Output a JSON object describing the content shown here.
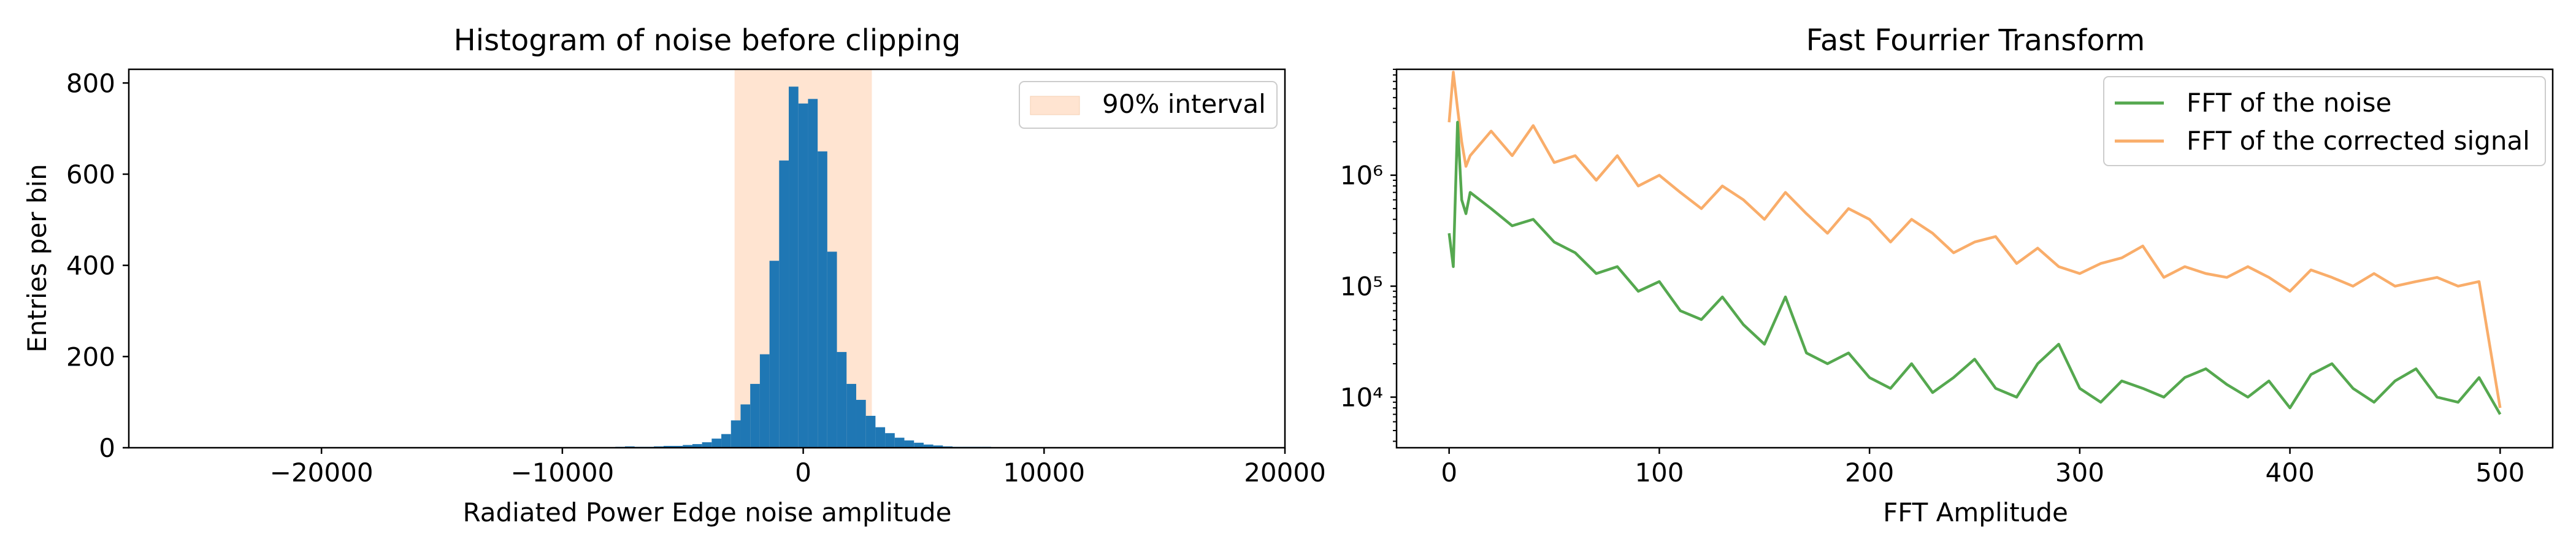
{
  "chart_data": [
    {
      "type": "bar",
      "title": "Histogram of noise before clipping",
      "xlabel": "Radiated Power Edge noise amplitude",
      "ylabel": "Entries per bin",
      "xlim": [
        -28000,
        20000
      ],
      "ylim": [
        0,
        830
      ],
      "xticks": [
        -20000,
        -10000,
        0,
        10000,
        20000
      ],
      "xtick_labels": [
        "−20000",
        "−10000",
        "0",
        "10000",
        "20000"
      ],
      "yticks": [
        0,
        200,
        400,
        600,
        800
      ],
      "ytick_labels": [
        "0",
        "200",
        "400",
        "600",
        "800"
      ],
      "bar_color": "#1f77b4",
      "bin_width": 400,
      "bins": [
        {
          "x": -27000,
          "y": 1
        },
        {
          "x": -25000,
          "y": 1
        },
        {
          "x": -24200,
          "y": 1
        },
        {
          "x": -18500,
          "y": 1
        },
        {
          "x": -14000,
          "y": 1
        },
        {
          "x": -12500,
          "y": 1
        },
        {
          "x": -11000,
          "y": 1
        },
        {
          "x": -10000,
          "y": 1
        },
        {
          "x": -7600,
          "y": 2
        },
        {
          "x": -7200,
          "y": 3
        },
        {
          "x": -6800,
          "y": 2
        },
        {
          "x": -6400,
          "y": 2
        },
        {
          "x": -6000,
          "y": 3
        },
        {
          "x": -5600,
          "y": 4
        },
        {
          "x": -5200,
          "y": 4
        },
        {
          "x": -4800,
          "y": 6
        },
        {
          "x": -4400,
          "y": 8
        },
        {
          "x": -4000,
          "y": 12
        },
        {
          "x": -3600,
          "y": 20
        },
        {
          "x": -3200,
          "y": 30
        },
        {
          "x": -2800,
          "y": 60
        },
        {
          "x": -2400,
          "y": 95
        },
        {
          "x": -2000,
          "y": 140
        },
        {
          "x": -1600,
          "y": 205
        },
        {
          "x": -1200,
          "y": 410
        },
        {
          "x": -800,
          "y": 630
        },
        {
          "x": -400,
          "y": 792
        },
        {
          "x": 0,
          "y": 755
        },
        {
          "x": 400,
          "y": 765
        },
        {
          "x": 800,
          "y": 650
        },
        {
          "x": 1200,
          "y": 430
        },
        {
          "x": 1600,
          "y": 210
        },
        {
          "x": 2000,
          "y": 140
        },
        {
          "x": 2400,
          "y": 105
        },
        {
          "x": 2800,
          "y": 70
        },
        {
          "x": 3200,
          "y": 45
        },
        {
          "x": 3600,
          "y": 32
        },
        {
          "x": 4000,
          "y": 22
        },
        {
          "x": 4400,
          "y": 16
        },
        {
          "x": 4800,
          "y": 11
        },
        {
          "x": 5200,
          "y": 7
        },
        {
          "x": 5600,
          "y": 5
        },
        {
          "x": 6000,
          "y": 3
        },
        {
          "x": 6400,
          "y": 2
        },
        {
          "x": 6800,
          "y": 2
        },
        {
          "x": 7200,
          "y": 2
        },
        {
          "x": 7600,
          "y": 2
        },
        {
          "x": 8000,
          "y": 1
        },
        {
          "x": 9000,
          "y": 1
        },
        {
          "x": 10000,
          "y": 1
        },
        {
          "x": 12500,
          "y": 1
        },
        {
          "x": 16500,
          "y": 1
        }
      ],
      "interval": {
        "label": "90% interval",
        "lo": -2850,
        "hi": 2850,
        "color": "#ffe4d1"
      },
      "legend_position": "top-right",
      "grid": false
    },
    {
      "type": "line",
      "title": "Fast Fourrier Transform",
      "xlabel": "FFT Amplitude",
      "ylabel": "",
      "xlim": [
        -25,
        525
      ],
      "ylim": [
        3500,
        9000000
      ],
      "yscale": "log",
      "xticks": [
        0,
        100,
        200,
        300,
        400,
        500
      ],
      "xtick_labels": [
        "0",
        "100",
        "200",
        "300",
        "400",
        "500"
      ],
      "ytick_values": [
        10000,
        100000,
        1000000
      ],
      "ytick_labels": [
        "10⁴",
        "10⁵",
        "10⁶"
      ],
      "legend_position": "top-right",
      "grid": false,
      "series": [
        {
          "name": "FFT of the noise",
          "color": "#55a84f",
          "x": [
            0,
            2,
            4,
            6,
            8,
            10,
            20,
            30,
            40,
            50,
            60,
            70,
            80,
            90,
            100,
            110,
            120,
            130,
            140,
            150,
            160,
            170,
            180,
            190,
            200,
            210,
            220,
            230,
            240,
            250,
            260,
            270,
            280,
            290,
            300,
            310,
            320,
            330,
            340,
            350,
            360,
            370,
            380,
            390,
            400,
            410,
            420,
            430,
            440,
            450,
            460,
            470,
            480,
            490,
            500
          ],
          "y": [
            300000,
            150000,
            3000000,
            600000,
            450000,
            700000,
            500000,
            350000,
            400000,
            250000,
            200000,
            130000,
            150000,
            90000,
            110000,
            60000,
            50000,
            80000,
            45000,
            30000,
            80000,
            25000,
            20000,
            25000,
            15000,
            12000,
            20000,
            11000,
            15000,
            22000,
            12000,
            10000,
            20000,
            30000,
            12000,
            9000,
            14000,
            12000,
            10000,
            15000,
            18000,
            13000,
            10000,
            14000,
            8000,
            16000,
            20000,
            12000,
            9000,
            14000,
            18000,
            10000,
            9000,
            15000,
            7000
          ]
        },
        {
          "name": "FFT of the corrected signal",
          "color": "#f9ad6a",
          "x": [
            0,
            2,
            4,
            6,
            8,
            10,
            20,
            30,
            40,
            50,
            60,
            70,
            80,
            90,
            100,
            110,
            120,
            130,
            140,
            150,
            160,
            170,
            180,
            190,
            200,
            210,
            220,
            230,
            240,
            250,
            260,
            270,
            280,
            290,
            300,
            310,
            320,
            330,
            340,
            350,
            360,
            370,
            380,
            390,
            400,
            410,
            420,
            430,
            440,
            450,
            460,
            470,
            480,
            490,
            500
          ],
          "y": [
            3000000,
            8500000,
            4000000,
            2000000,
            1200000,
            1500000,
            2500000,
            1500000,
            2800000,
            1300000,
            1500000,
            900000,
            1500000,
            800000,
            1000000,
            700000,
            500000,
            800000,
            600000,
            400000,
            700000,
            450000,
            300000,
            500000,
            400000,
            250000,
            400000,
            300000,
            200000,
            250000,
            280000,
            160000,
            220000,
            150000,
            130000,
            160000,
            180000,
            230000,
            120000,
            150000,
            130000,
            120000,
            150000,
            120000,
            90000,
            140000,
            120000,
            100000,
            130000,
            100000,
            110000,
            120000,
            100000,
            110000,
            8000
          ]
        }
      ]
    }
  ]
}
